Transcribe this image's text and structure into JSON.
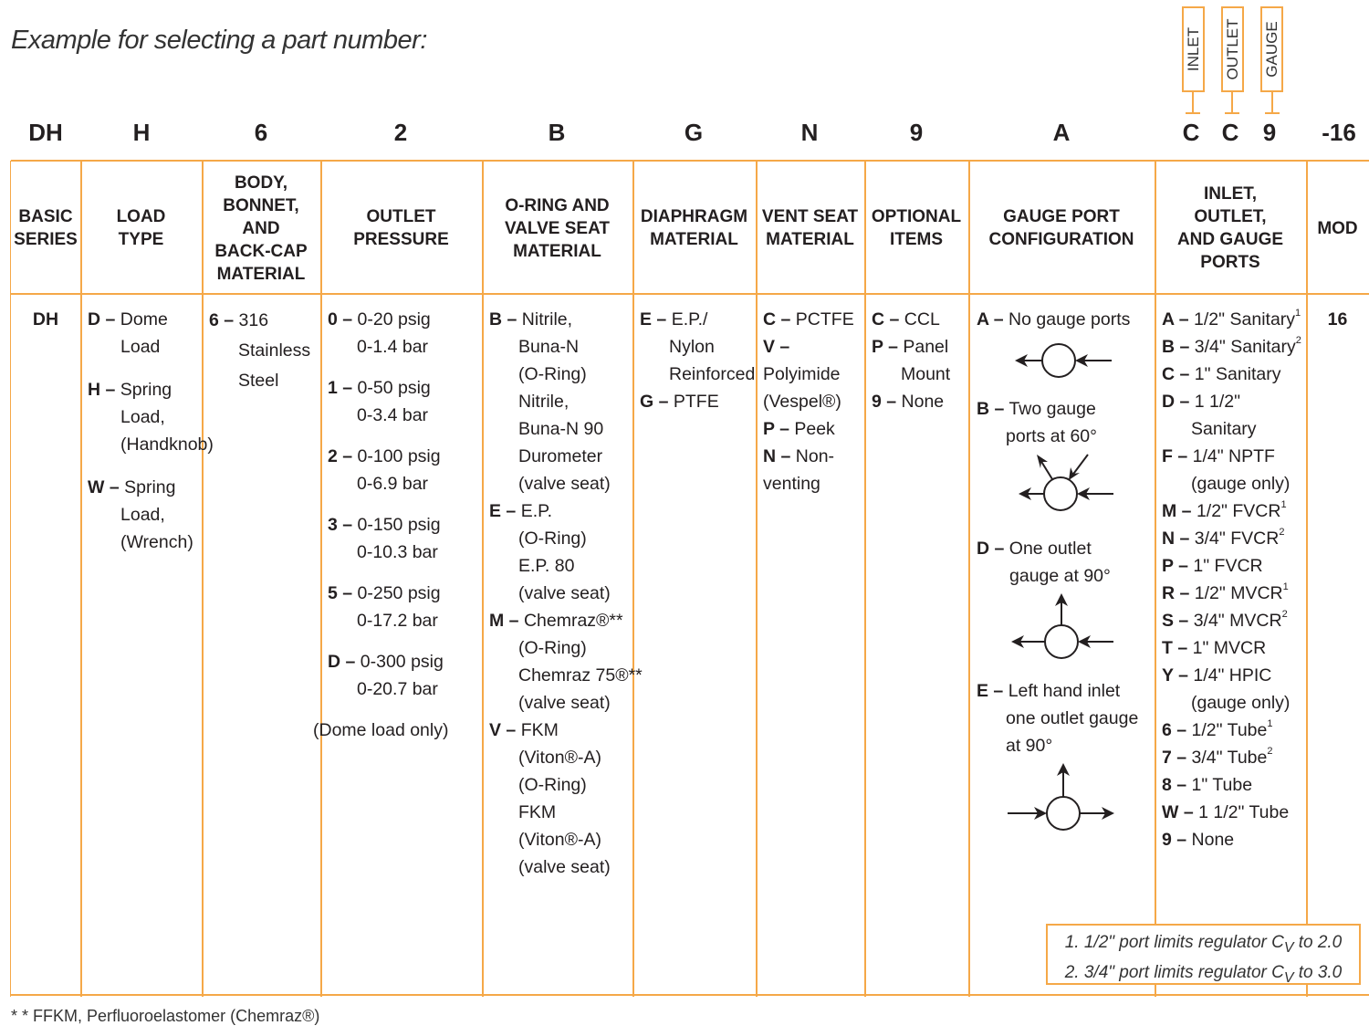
{
  "title": "Example for selecting a part number:",
  "codes": [
    "DH",
    "H",
    "6",
    "2",
    "B",
    "G",
    "N",
    "9",
    "A",
    "C",
    "C",
    "9",
    "-16"
  ],
  "port_labels": [
    "INLET",
    "OUTLET",
    "GAUGE"
  ],
  "headers": [
    "BASIC\nSERIES",
    "LOAD\nTYPE",
    "BODY,\nBONNET,\nAND\nBACK-CAP\nMATERIAL",
    "OUTLET\nPRESSURE",
    "O-RING AND\nVALVE SEAT\nMATERIAL",
    "DIAPHRAGM\nMATERIAL",
    "VENT SEAT\nMATERIAL",
    "OPTIONAL\nITEMS",
    "GAUGE PORT\nCONFIGURATION",
    "INLET,\nOUTLET,\nAND GAUGE\nPORTS",
    "MOD"
  ],
  "columns": [
    {
      "entries": [
        {
          "code": "DH",
          "lines": []
        }
      ]
    },
    {
      "entries": [
        {
          "code": "D –",
          "lines": [
            "Dome",
            "Load"
          ]
        },
        {
          "code": "H –",
          "lines": [
            "Spring",
            "Load,",
            "(Handknob)"
          ]
        },
        {
          "code": "W –",
          "lines": [
            "Spring",
            "Load,",
            "(Wrench)"
          ]
        }
      ]
    },
    {
      "entries": [
        {
          "code": "6 –",
          "lines": [
            "316",
            "Stainless",
            "Steel"
          ]
        }
      ]
    },
    {
      "entries": [
        {
          "code": "0 –",
          "lines": [
            "0-20 psig",
            "0-1.4 bar"
          ]
        },
        {
          "code": "1 –",
          "lines": [
            "0-50 psig",
            "0-3.4 bar"
          ]
        },
        {
          "code": "2 –",
          "lines": [
            "0-100 psig",
            "0-6.9 bar"
          ]
        },
        {
          "code": "3 –",
          "lines": [
            "0-150 psig",
            "0-10.3 bar"
          ]
        },
        {
          "code": "5 –",
          "lines": [
            "0-250 psig",
            "0-17.2 bar"
          ]
        },
        {
          "code": "D –",
          "lines": [
            "0-300 psig",
            "0-20.7 bar"
          ]
        },
        {
          "code": "",
          "lines": [
            "(Dome load only)"
          ]
        }
      ]
    },
    {
      "entries": [
        {
          "code": "B –",
          "lines": [
            "Nitrile,",
            "Buna-N",
            "(O-Ring)",
            "Nitrile,",
            "Buna-N 90",
            "Durometer",
            "(valve seat)"
          ]
        },
        {
          "code": "E –",
          "lines": [
            "E.P.",
            "(O-Ring)",
            "E.P. 80",
            "(valve seat)"
          ]
        },
        {
          "code": "M –",
          "lines": [
            "Chemraz®**",
            "(O-Ring)",
            "Chemraz 75®**",
            "(valve seat)"
          ]
        },
        {
          "code": "V –",
          "lines": [
            "FKM",
            "(Viton®-A)",
            "(O-Ring)",
            "FKM",
            "(Viton®-A)",
            "(valve seat)"
          ]
        }
      ]
    },
    {
      "entries": [
        {
          "code": "E –",
          "lines": [
            "E.P./",
            "Nylon",
            "Reinforced"
          ]
        },
        {
          "code": "G –",
          "lines": [
            "PTFE"
          ]
        }
      ]
    },
    {
      "entries": [
        {
          "code": "C –",
          "lines": [
            "PCTFE"
          ]
        },
        {
          "code": "V –",
          "lines": [
            "",
            "Polyimide",
            "(Vespel®)"
          ]
        },
        {
          "code": "P –",
          "lines": [
            "Peek"
          ]
        },
        {
          "code": "N –",
          "lines": [
            "Non-",
            "venting"
          ]
        }
      ]
    },
    {
      "entries": [
        {
          "code": "C –",
          "lines": [
            "CCL"
          ]
        },
        {
          "code": "P –",
          "lines": [
            "Panel",
            "Mount"
          ]
        },
        {
          "code": "9 –",
          "lines": [
            "None"
          ]
        }
      ]
    },
    {
      "entries": []
    },
    {
      "entries": [
        {
          "code": "A –",
          "lines": [
            "1/2\" Sanitary"
          ],
          "sup": "1"
        },
        {
          "code": "B –",
          "lines": [
            "3/4\" Sanitary"
          ],
          "sup": "2"
        },
        {
          "code": "C –",
          "lines": [
            "1\" Sanitary"
          ]
        },
        {
          "code": "D –",
          "lines": [
            "1 1/2\"",
            "Sanitary"
          ]
        },
        {
          "code": "F –",
          "lines": [
            "1/4\" NPTF",
            "(gauge only)"
          ]
        },
        {
          "code": "M –",
          "lines": [
            "1/2\" FVCR"
          ],
          "sup": "1"
        },
        {
          "code": "N –",
          "lines": [
            "3/4\" FVCR"
          ],
          "sup": "2"
        },
        {
          "code": "P –",
          "lines": [
            "1\" FVCR"
          ]
        },
        {
          "code": "R –",
          "lines": [
            "1/2\" MVCR"
          ],
          "sup": "1"
        },
        {
          "code": "S –",
          "lines": [
            "3/4\" MVCR"
          ],
          "sup": "2"
        },
        {
          "code": "T –",
          "lines": [
            "1\" MVCR"
          ]
        },
        {
          "code": "Y –",
          "lines": [
            "1/4\" HPIC",
            "(gauge only)"
          ]
        },
        {
          "code": "6 –",
          "lines": [
            "1/2\" Tube"
          ],
          "sup": "1"
        },
        {
          "code": "7 –",
          "lines": [
            "3/4\" Tube"
          ],
          "sup": "2"
        },
        {
          "code": "8 –",
          "lines": [
            "1\" Tube"
          ]
        },
        {
          "code": "W –",
          "lines": [
            "1 1/2\" Tube"
          ]
        },
        {
          "code": "9 –",
          "lines": [
            "None"
          ]
        }
      ]
    },
    {
      "entries": [
        {
          "code": "16",
          "lines": []
        }
      ]
    }
  ],
  "gauge_port": {
    "A": {
      "code": "A –",
      "lines": [
        "No gauge ports"
      ]
    },
    "B": {
      "code": "B –",
      "lines": [
        "Two gauge",
        "ports at 60°"
      ]
    },
    "D": {
      "code": "D –",
      "lines": [
        "One outlet",
        "gauge at 90°"
      ]
    },
    "E": {
      "code": "E –",
      "lines": [
        "Left hand inlet",
        "one outlet gauge",
        "at 90°"
      ]
    }
  },
  "footnotes": [
    "1. 1/2\" port limits regulator C",
    "2. 3/4\" port limits regulator C"
  ],
  "footnote_sub": "V",
  "footnote_tails": [
    " to 2.0",
    " to 3.0"
  ],
  "footer": "* * FFKM, Perfluoroelastomer (Chemraz®)",
  "accent": "#f5a848"
}
